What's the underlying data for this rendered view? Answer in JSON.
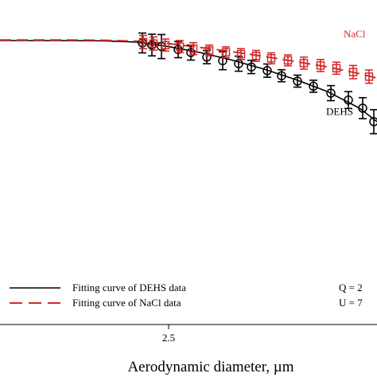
{
  "chart_data": {
    "type": "scatter",
    "xlabel": "Aerodynamic diameter, µm",
    "x_ticks": [
      2.5
    ],
    "x_tick_labels": [
      "2.5"
    ],
    "xlim": [
      1.44,
      3.81
    ],
    "ylim": [
      0.0,
      1.08
    ],
    "grid": false,
    "series": [
      {
        "name": "DEHS",
        "kind": "points",
        "marker": "circle",
        "color": "#000000",
        "x": [
          2.335,
          2.395,
          2.455,
          2.56,
          2.64,
          2.74,
          2.84,
          2.94,
          3.02,
          3.12,
          3.21,
          3.31,
          3.41,
          3.52,
          3.63,
          3.72,
          3.79
        ],
        "y": [
          0.937,
          0.93,
          0.925,
          0.915,
          0.905,
          0.89,
          0.878,
          0.868,
          0.857,
          0.845,
          0.828,
          0.81,
          0.793,
          0.77,
          0.747,
          0.72,
          0.675
        ],
        "err": [
          0.033,
          0.036,
          0.04,
          0.027,
          0.025,
          0.022,
          0.03,
          0.025,
          0.022,
          0.022,
          0.02,
          0.02,
          0.02,
          0.025,
          0.028,
          0.035,
          0.04
        ]
      },
      {
        "name": "NaCl",
        "kind": "points",
        "marker": "square",
        "color": "#d42a2a",
        "x": [
          2.34,
          2.405,
          2.48,
          2.57,
          2.655,
          2.755,
          2.86,
          2.955,
          3.05,
          3.145,
          3.25,
          3.35,
          3.455,
          3.555,
          3.66,
          3.76
        ],
        "y": [
          0.94,
          0.935,
          0.93,
          0.925,
          0.918,
          0.912,
          0.906,
          0.9,
          0.894,
          0.886,
          0.879,
          0.87,
          0.862,
          0.853,
          0.84,
          0.825
        ],
        "err": [
          0.022,
          0.022,
          0.02,
          0.02,
          0.02,
          0.018,
          0.018,
          0.018,
          0.018,
          0.018,
          0.018,
          0.02,
          0.02,
          0.02,
          0.022,
          0.022
        ]
      },
      {
        "name": "Fitting curve of DEHS data",
        "kind": "line",
        "style": "solid",
        "color": "#000000",
        "x": [
          1.44,
          1.8,
          2.1,
          2.3,
          2.5,
          2.7,
          2.9,
          3.1,
          3.3,
          3.5,
          3.7,
          3.81
        ],
        "y": [
          0.945,
          0.945,
          0.944,
          0.94,
          0.925,
          0.905,
          0.88,
          0.85,
          0.815,
          0.775,
          0.72,
          0.675
        ]
      },
      {
        "name": "Fitting curve of NaCl data",
        "kind": "line",
        "style": "dashed",
        "color": "#d42a2a",
        "x": [
          1.44,
          1.8,
          2.1,
          2.3,
          2.5,
          2.7,
          2.9,
          3.1,
          3.3,
          3.5,
          3.7,
          3.81
        ],
        "y": [
          0.947,
          0.947,
          0.946,
          0.943,
          0.935,
          0.922,
          0.908,
          0.892,
          0.875,
          0.857,
          0.835,
          0.82
        ]
      }
    ],
    "annotations": [
      {
        "text": "NaCl",
        "color": "#d42a2a",
        "x": 3.6,
        "y": 0.955
      },
      {
        "text": "DEHS",
        "color": "#000000",
        "x": 3.49,
        "y": 0.697
      }
    ],
    "legend": {
      "placement": "bottom-left",
      "entries": [
        {
          "label": "Fitting curve of DEHS data",
          "color": "#000000",
          "style": "solid"
        },
        {
          "label": "Fitting curve of NaCl data",
          "color": "#d42a2a",
          "style": "dashed"
        }
      ]
    },
    "side_text": [
      {
        "text": "Q = 2"
      },
      {
        "text": "U = 7"
      }
    ]
  }
}
